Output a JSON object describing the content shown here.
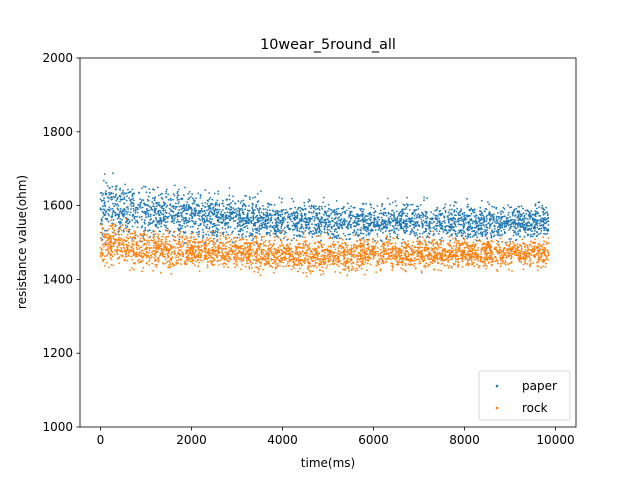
{
  "chart_data": {
    "type": "scatter",
    "title": "10wear_5round_all",
    "xlabel": "time(ms)",
    "ylabel": "resistance value(ohm)",
    "xlim": [
      -450,
      10450
    ],
    "ylim": [
      1000,
      2000
    ],
    "x_ticks": [
      0,
      2000,
      4000,
      6000,
      8000,
      10000
    ],
    "x_tick_labels": [
      "0",
      "2000",
      "4000",
      "6000",
      "8000",
      "10000"
    ],
    "y_ticks": [
      1000,
      1200,
      1400,
      1600,
      1800,
      2000
    ],
    "y_tick_labels": [
      "1000",
      "1200",
      "1400",
      "1600",
      "1800",
      "2000"
    ],
    "grid": false,
    "legend_position": "lower right",
    "series": [
      {
        "name": "paper",
        "color": "#1f77b4",
        "x_range": [
          0,
          9850
        ],
        "band": [
          {
            "x": 0,
            "low": 1460,
            "high": 1730
          },
          {
            "x": 1000,
            "low": 1470,
            "high": 1690
          },
          {
            "x": 2000,
            "low": 1480,
            "high": 1670
          },
          {
            "x": 3000,
            "low": 1480,
            "high": 1655
          },
          {
            "x": 4000,
            "low": 1480,
            "high": 1640
          },
          {
            "x": 5000,
            "low": 1480,
            "high": 1632
          },
          {
            "x": 6000,
            "low": 1480,
            "high": 1632
          },
          {
            "x": 7000,
            "low": 1480,
            "high": 1632
          },
          {
            "x": 8000,
            "low": 1480,
            "high": 1632
          },
          {
            "x": 9850,
            "low": 1480,
            "high": 1632
          }
        ]
      },
      {
        "name": "rock",
        "color": "#ff7f0e",
        "x_range": [
          0,
          9850
        ],
        "band": [
          {
            "x": 0,
            "low": 1410,
            "high": 1590
          },
          {
            "x": 1000,
            "low": 1400,
            "high": 1560
          },
          {
            "x": 2000,
            "low": 1405,
            "high": 1550
          },
          {
            "x": 3000,
            "low": 1405,
            "high": 1545
          },
          {
            "x": 4000,
            "low": 1400,
            "high": 1540
          },
          {
            "x": 5000,
            "low": 1390,
            "high": 1540
          },
          {
            "x": 6000,
            "low": 1400,
            "high": 1540
          },
          {
            "x": 7000,
            "low": 1405,
            "high": 1535
          },
          {
            "x": 8000,
            "low": 1405,
            "high": 1535
          },
          {
            "x": 9850,
            "low": 1405,
            "high": 1535
          }
        ]
      }
    ]
  }
}
